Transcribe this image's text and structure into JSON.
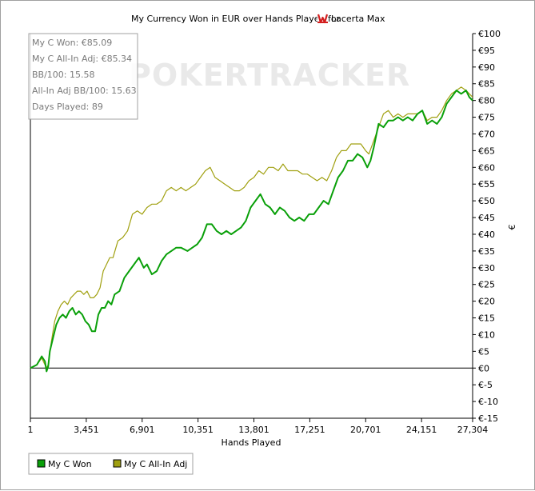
{
  "chart_data": {
    "type": "line",
    "title_parts": {
      "prefix": "My Currency Won in EUR over Hands Played for",
      "player": "Lacerta Max"
    },
    "xlabel": "Hands Played",
    "ylabel": "€",
    "xlim": [
      1,
      27304
    ],
    "ylim": [
      -15,
      100
    ],
    "x_ticks": [
      1,
      3451,
      6901,
      10351,
      13801,
      17251,
      20701,
      24151,
      27304
    ],
    "x_tick_labels": [
      "1",
      "3,451",
      "6,901",
      "10,351",
      "13,801",
      "17,251",
      "20,701",
      "24,151",
      "27,304"
    ],
    "y_ticks": [
      100,
      95,
      90,
      85,
      80,
      75,
      70,
      65,
      60,
      55,
      50,
      45,
      40,
      35,
      30,
      25,
      20,
      15,
      10,
      5,
      0,
      -5,
      -10,
      -15
    ],
    "y_tick_labels": [
      "€100",
      "€95",
      "€90",
      "€85",
      "€80",
      "€75",
      "€70",
      "€65",
      "€60",
      "€55",
      "€50",
      "€45",
      "€40",
      "€35",
      "€30",
      "€25",
      "€20",
      "€15",
      "€10",
      "€5",
      "€0",
      "€-5",
      "€-10",
      "€-15"
    ],
    "series": [
      {
        "name": "My C Won",
        "color": "#0aa00a",
        "points": [
          [
            1,
            0
          ],
          [
            400,
            1
          ],
          [
            700,
            3.5
          ],
          [
            900,
            2
          ],
          [
            1000,
            -1
          ],
          [
            1100,
            0.5
          ],
          [
            1200,
            5
          ],
          [
            1400,
            9
          ],
          [
            1600,
            13
          ],
          [
            1800,
            15
          ],
          [
            2000,
            16
          ],
          [
            2200,
            15
          ],
          [
            2400,
            17
          ],
          [
            2600,
            18
          ],
          [
            2800,
            16
          ],
          [
            3000,
            17
          ],
          [
            3200,
            16
          ],
          [
            3400,
            14
          ],
          [
            3600,
            13
          ],
          [
            3800,
            11
          ],
          [
            4000,
            11
          ],
          [
            4200,
            16
          ],
          [
            4400,
            18
          ],
          [
            4600,
            18
          ],
          [
            4800,
            20
          ],
          [
            5000,
            19
          ],
          [
            5200,
            22
          ],
          [
            5500,
            23
          ],
          [
            5800,
            27
          ],
          [
            6100,
            29
          ],
          [
            6400,
            31
          ],
          [
            6700,
            33
          ],
          [
            7000,
            30
          ],
          [
            7200,
            31
          ],
          [
            7500,
            28
          ],
          [
            7800,
            29
          ],
          [
            8100,
            32
          ],
          [
            8400,
            34
          ],
          [
            8700,
            35
          ],
          [
            9000,
            36
          ],
          [
            9300,
            36
          ],
          [
            9700,
            35
          ],
          [
            10000,
            36
          ],
          [
            10300,
            37
          ],
          [
            10600,
            39
          ],
          [
            10900,
            43
          ],
          [
            11200,
            43
          ],
          [
            11500,
            41
          ],
          [
            11800,
            40
          ],
          [
            12100,
            41
          ],
          [
            12400,
            40
          ],
          [
            12700,
            41
          ],
          [
            13000,
            42
          ],
          [
            13300,
            44
          ],
          [
            13600,
            48
          ],
          [
            13900,
            50
          ],
          [
            14200,
            52
          ],
          [
            14500,
            49
          ],
          [
            14800,
            48
          ],
          [
            15100,
            46
          ],
          [
            15400,
            48
          ],
          [
            15700,
            47
          ],
          [
            16000,
            45
          ],
          [
            16300,
            44
          ],
          [
            16600,
            45
          ],
          [
            16900,
            44
          ],
          [
            17200,
            46
          ],
          [
            17500,
            46
          ],
          [
            17800,
            48
          ],
          [
            18100,
            50
          ],
          [
            18400,
            49
          ],
          [
            18700,
            53
          ],
          [
            19000,
            57
          ],
          [
            19300,
            59
          ],
          [
            19600,
            62
          ],
          [
            19900,
            62
          ],
          [
            20200,
            64
          ],
          [
            20500,
            63
          ],
          [
            20800,
            60
          ],
          [
            21000,
            62
          ],
          [
            21200,
            66
          ],
          [
            21500,
            73
          ],
          [
            21800,
            72
          ],
          [
            22100,
            74
          ],
          [
            22400,
            74
          ],
          [
            22700,
            75
          ],
          [
            23000,
            74
          ],
          [
            23300,
            75
          ],
          [
            23600,
            74
          ],
          [
            23900,
            76
          ],
          [
            24200,
            77
          ],
          [
            24500,
            73
          ],
          [
            24800,
            74
          ],
          [
            25100,
            73
          ],
          [
            25400,
            75
          ],
          [
            25700,
            79
          ],
          [
            26000,
            81
          ],
          [
            26300,
            83
          ],
          [
            26600,
            82
          ],
          [
            26900,
            83
          ],
          [
            27100,
            81
          ],
          [
            27304,
            80
          ]
        ]
      },
      {
        "name": "My C All-In Adj",
        "color": "#a0a010",
        "points": [
          [
            1,
            0
          ],
          [
            400,
            1
          ],
          [
            700,
            3
          ],
          [
            900,
            1
          ],
          [
            1000,
            0
          ],
          [
            1100,
            1
          ],
          [
            1300,
            8
          ],
          [
            1500,
            14
          ],
          [
            1700,
            17
          ],
          [
            1900,
            19
          ],
          [
            2100,
            20
          ],
          [
            2300,
            19
          ],
          [
            2500,
            21
          ],
          [
            2700,
            22
          ],
          [
            2900,
            23
          ],
          [
            3100,
            23
          ],
          [
            3300,
            22
          ],
          [
            3500,
            23
          ],
          [
            3700,
            21
          ],
          [
            3900,
            21
          ],
          [
            4100,
            22
          ],
          [
            4300,
            24
          ],
          [
            4500,
            29
          ],
          [
            4700,
            31
          ],
          [
            4900,
            33
          ],
          [
            5100,
            33
          ],
          [
            5400,
            38
          ],
          [
            5700,
            39
          ],
          [
            6000,
            41
          ],
          [
            6300,
            46
          ],
          [
            6600,
            47
          ],
          [
            6900,
            46
          ],
          [
            7200,
            48
          ],
          [
            7500,
            49
          ],
          [
            7800,
            49
          ],
          [
            8100,
            50
          ],
          [
            8400,
            53
          ],
          [
            8700,
            54
          ],
          [
            9000,
            53
          ],
          [
            9300,
            54
          ],
          [
            9600,
            53
          ],
          [
            9900,
            54
          ],
          [
            10200,
            55
          ],
          [
            10500,
            57
          ],
          [
            10800,
            59
          ],
          [
            11100,
            60
          ],
          [
            11400,
            57
          ],
          [
            11700,
            56
          ],
          [
            12000,
            55
          ],
          [
            12300,
            54
          ],
          [
            12600,
            53
          ],
          [
            12900,
            53
          ],
          [
            13200,
            54
          ],
          [
            13500,
            56
          ],
          [
            13800,
            57
          ],
          [
            14100,
            59
          ],
          [
            14400,
            58
          ],
          [
            14700,
            60
          ],
          [
            15000,
            60
          ],
          [
            15300,
            59
          ],
          [
            15600,
            61
          ],
          [
            15900,
            59
          ],
          [
            16200,
            59
          ],
          [
            16500,
            59
          ],
          [
            16800,
            58
          ],
          [
            17100,
            58
          ],
          [
            17400,
            57
          ],
          [
            17700,
            56
          ],
          [
            18000,
            57
          ],
          [
            18300,
            56
          ],
          [
            18600,
            59
          ],
          [
            18900,
            63
          ],
          [
            19200,
            65
          ],
          [
            19500,
            65
          ],
          [
            19800,
            67
          ],
          [
            20100,
            67
          ],
          [
            20400,
            67
          ],
          [
            20700,
            65
          ],
          [
            20900,
            64
          ],
          [
            21200,
            68
          ],
          [
            21500,
            72
          ],
          [
            21800,
            76
          ],
          [
            22100,
            77
          ],
          [
            22400,
            75
          ],
          [
            22700,
            76
          ],
          [
            23000,
            75
          ],
          [
            23300,
            76
          ],
          [
            23600,
            76
          ],
          [
            23900,
            76
          ],
          [
            24200,
            77
          ],
          [
            24500,
            74
          ],
          [
            24800,
            75
          ],
          [
            25100,
            75
          ],
          [
            25400,
            77
          ],
          [
            25700,
            80
          ],
          [
            26000,
            82
          ],
          [
            26300,
            83
          ],
          [
            26600,
            84
          ],
          [
            26900,
            83
          ],
          [
            27100,
            82
          ],
          [
            27304,
            81
          ]
        ]
      }
    ],
    "stats": [
      "My C Won: €85.09",
      "My C All-In Adj: €85.34",
      "BB/100: 15.58",
      "All-In Adj BB/100: 15.63",
      "Days Played: 89"
    ],
    "watermark": "POKERTRACKER",
    "legend": {
      "placement": "bottom-left",
      "items": [
        "My C Won",
        "My C All-In Adj"
      ]
    },
    "grid": false
  }
}
